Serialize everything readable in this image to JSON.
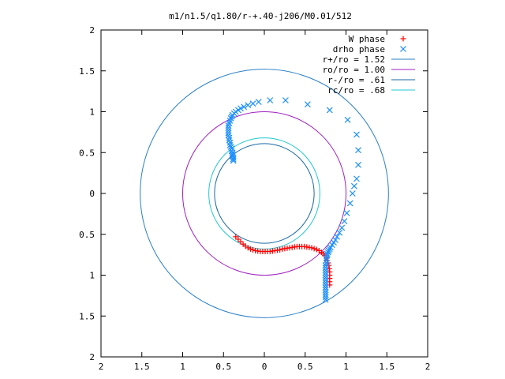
{
  "chart_data": {
    "type": "scatter",
    "title": "m1/n1.5/q1.80/r-+.40-j206/M0.01/512",
    "xlabel": "",
    "ylabel": "",
    "xlim": [
      -2,
      2
    ],
    "ylim": [
      -2,
      2
    ],
    "x_ticks": [
      -2,
      -1.5,
      -1,
      -0.5,
      0,
      0.5,
      1,
      1.5,
      2
    ],
    "y_ticks": [
      -2,
      -1.5,
      -1,
      -0.5,
      0,
      0.5,
      1,
      1.5,
      2
    ],
    "x_tick_labels": [
      "2",
      "1.5",
      "1",
      "0.5",
      "0",
      "0.5",
      "1",
      "1.5",
      "2"
    ],
    "y_tick_labels": [
      "2",
      "1.5",
      "1",
      "0.5",
      "0",
      "0.5",
      "1",
      "1.5",
      "2"
    ],
    "grid": false,
    "legend_position": "top-right",
    "legend": [
      {
        "label": "W phase",
        "kind": "plus",
        "color": "#ff0000"
      },
      {
        "label": "drho phase",
        "kind": "cross",
        "color": "#1e90ff"
      },
      {
        "label": "r+/ro = 1.52",
        "kind": "line",
        "color": "#2a80c8"
      },
      {
        "label": "ro/ro = 1.00",
        "kind": "line",
        "color": "#a020c0"
      },
      {
        "label": "r-/ro = .61",
        "kind": "line",
        "color": "#1a6aa6"
      },
      {
        "label": "rc/ro = .68",
        "kind": "line",
        "color": "#20c8d0"
      }
    ],
    "circles": [
      {
        "name": "r+/ro = 1.52",
        "r": 1.52,
        "color": "#2a80c8"
      },
      {
        "name": "ro/ro = 1.00",
        "r": 1.0,
        "color": "#a020c0"
      },
      {
        "name": "r-/ro = .61",
        "r": 0.61,
        "color": "#1a6aa6"
      },
      {
        "name": "rc/ro = .68",
        "r": 0.68,
        "color": "#20c8d0"
      }
    ],
    "series": [
      {
        "name": "W phase",
        "marker": "plus",
        "color": "#ff0000",
        "x": [
          -0.35,
          -0.32,
          -0.29,
          -0.26,
          -0.23,
          -0.2,
          -0.17,
          -0.14,
          -0.11,
          -0.08,
          -0.05,
          -0.02,
          0.01,
          0.04,
          0.07,
          0.1,
          0.13,
          0.16,
          0.19,
          0.22,
          0.25,
          0.28,
          0.31,
          0.34,
          0.37,
          0.4,
          0.43,
          0.46,
          0.49,
          0.52,
          0.55,
          0.58,
          0.61,
          0.64,
          0.67,
          0.7,
          0.72,
          0.74,
          0.76,
          0.77,
          0.78,
          0.79,
          0.795,
          0.8,
          0.8,
          0.8,
          0.8,
          0.8
        ],
        "y": [
          -0.53,
          -0.56,
          -0.59,
          -0.62,
          -0.645,
          -0.665,
          -0.68,
          -0.69,
          -0.7,
          -0.705,
          -0.71,
          -0.71,
          -0.71,
          -0.71,
          -0.71,
          -0.705,
          -0.7,
          -0.695,
          -0.69,
          -0.68,
          -0.675,
          -0.67,
          -0.665,
          -0.66,
          -0.655,
          -0.65,
          -0.65,
          -0.65,
          -0.65,
          -0.655,
          -0.66,
          -0.665,
          -0.675,
          -0.685,
          -0.7,
          -0.72,
          -0.74,
          -0.76,
          -0.79,
          -0.82,
          -0.85,
          -0.88,
          -0.92,
          -0.96,
          -1.0,
          -1.04,
          -1.08,
          -1.12
        ]
      },
      {
        "name": "drho phase",
        "marker": "cross",
        "color": "#1e90ff",
        "x": [
          0.75,
          0.75,
          0.75,
          0.75,
          0.75,
          0.75,
          0.75,
          0.75,
          0.75,
          0.75,
          0.75,
          0.75,
          0.75,
          0.75,
          0.75,
          0.76,
          0.76,
          0.76,
          0.77,
          0.77,
          0.78,
          0.79,
          0.8,
          0.81,
          0.83,
          0.85,
          0.87,
          0.89,
          0.92,
          0.95,
          0.98,
          1.01,
          1.05,
          1.08,
          1.1,
          1.13,
          1.15,
          1.15,
          1.13,
          1.02,
          0.8,
          0.53,
          0.26,
          0.07,
          -0.07,
          -0.14,
          -0.2,
          -0.25,
          -0.29,
          -0.32,
          -0.35,
          -0.37,
          -0.39,
          -0.4,
          -0.41,
          -0.42,
          -0.43,
          -0.44,
          -0.44,
          -0.44,
          -0.44,
          -0.44,
          -0.43,
          -0.43,
          -0.42,
          -0.42,
          -0.41,
          -0.4,
          -0.4,
          -0.39,
          -0.39,
          -0.39,
          -0.38,
          -0.38,
          -0.38
        ],
        "y": [
          -1.3,
          -1.27,
          -1.24,
          -1.21,
          -1.18,
          -1.15,
          -1.12,
          -1.09,
          -1.06,
          -1.03,
          -1.0,
          -0.97,
          -0.94,
          -0.91,
          -0.88,
          -0.85,
          -0.82,
          -0.79,
          -0.76,
          -0.74,
          -0.72,
          -0.7,
          -0.68,
          -0.66,
          -0.63,
          -0.6,
          -0.57,
          -0.53,
          -0.48,
          -0.42,
          -0.34,
          -0.24,
          -0.12,
          0.0,
          0.09,
          0.18,
          0.35,
          0.53,
          0.72,
          0.9,
          1.02,
          1.09,
          1.14,
          1.14,
          1.12,
          1.1,
          1.08,
          1.06,
          1.04,
          1.02,
          1.0,
          0.98,
          0.96,
          0.94,
          0.92,
          0.89,
          0.86,
          0.83,
          0.8,
          0.77,
          0.74,
          0.71,
          0.68,
          0.65,
          0.62,
          0.59,
          0.57,
          0.55,
          0.52,
          0.5,
          0.48,
          0.46,
          0.44,
          0.42,
          0.4
        ]
      }
    ]
  }
}
